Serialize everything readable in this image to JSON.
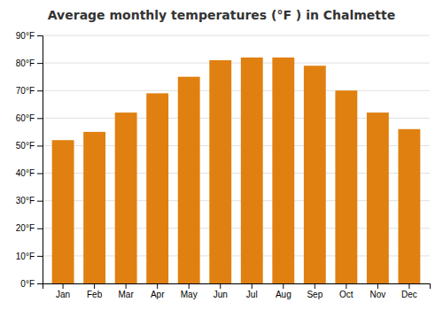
{
  "chart_data": {
    "type": "bar",
    "title": "Average monthly temperatures (°F ) in Chalmette",
    "categories": [
      "Jan",
      "Feb",
      "Mar",
      "Apr",
      "May",
      "Jun",
      "Jul",
      "Aug",
      "Sep",
      "Oct",
      "Nov",
      "Dec"
    ],
    "values": [
      52,
      55,
      62,
      69,
      75,
      81,
      82,
      82,
      79,
      70,
      62,
      56
    ],
    "color": "#E08010",
    "ylim": [
      0,
      90
    ],
    "yticks": [
      {
        "value": 0,
        "label": "0°F"
      },
      {
        "value": 10,
        "label": "10°F"
      },
      {
        "value": 20,
        "label": "20°F"
      },
      {
        "value": 30,
        "label": "30°F"
      },
      {
        "value": 40,
        "label": "40°F"
      },
      {
        "value": 50,
        "label": "50°F"
      },
      {
        "value": 60,
        "label": "60°F"
      },
      {
        "value": 70,
        "label": "70°F"
      },
      {
        "value": 80,
        "label": "80°F"
      },
      {
        "value": 90,
        "label": "90°F"
      }
    ],
    "grid": true
  }
}
